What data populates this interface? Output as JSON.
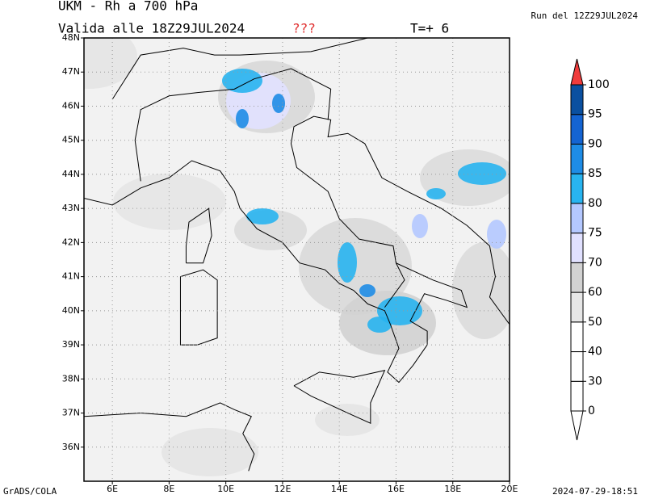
{
  "header": {
    "title": "UKM  -  Rh  a  700  hPa",
    "valid": "Valida alle 18Z29JUL2024",
    "flag": "???",
    "step": "T=+  6",
    "run": "Run del 12Z29JUL2024"
  },
  "map": {
    "lon_range": [
      5,
      20
    ],
    "lat_range": [
      35,
      48
    ],
    "lon_ticks": [
      {
        "value": 6,
        "label": "6E"
      },
      {
        "value": 8,
        "label": "8E"
      },
      {
        "value": 10,
        "label": "10E"
      },
      {
        "value": 12,
        "label": "12E"
      },
      {
        "value": 14,
        "label": "14E"
      },
      {
        "value": 16,
        "label": "16E"
      },
      {
        "value": 18,
        "label": "18E"
      },
      {
        "value": 20,
        "label": "20E"
      }
    ],
    "lat_ticks": [
      {
        "value": 36,
        "label": "36N"
      },
      {
        "value": 37,
        "label": "37N"
      },
      {
        "value": 38,
        "label": "38N"
      },
      {
        "value": 39,
        "label": "39N"
      },
      {
        "value": 40,
        "label": "40N"
      },
      {
        "value": 41,
        "label": "41N"
      },
      {
        "value": 42,
        "label": "42N"
      },
      {
        "value": 43,
        "label": "43N"
      },
      {
        "value": 44,
        "label": "44N"
      },
      {
        "value": 45,
        "label": "45N"
      },
      {
        "value": 46,
        "label": "46N"
      },
      {
        "value": 47,
        "label": "47N"
      },
      {
        "value": 48,
        "label": "48N"
      }
    ]
  },
  "colorbar": {
    "levels": [
      0,
      30,
      40,
      50,
      60,
      70,
      75,
      80,
      85,
      90,
      95,
      100
    ],
    "colors": [
      "#ffffff",
      "#ffffff",
      "#ffffff",
      "#ffffff",
      "#e6e6e6",
      "#d2d2d2",
      "#e1e1ff",
      "#b4c8ff",
      "#28b4f0",
      "#1e8ce6",
      "#1464d2",
      "#0a50a0",
      "#f03c3c"
    ]
  },
  "footer": {
    "left": "GrADS/COLA",
    "right": "2024-07-29-18:51"
  }
}
